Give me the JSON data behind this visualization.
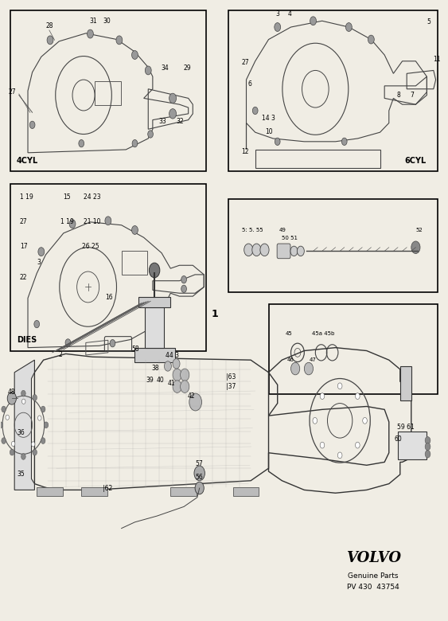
{
  "bg_color": "#f0ede4",
  "volvo_text": "VOLVO",
  "genuine_parts": "Genuine Parts",
  "part_number": "PV 430  43754",
  "box4cyl_label": "4CYL",
  "box6cyl_label": "6CYL",
  "boxdies_label": "DIES"
}
